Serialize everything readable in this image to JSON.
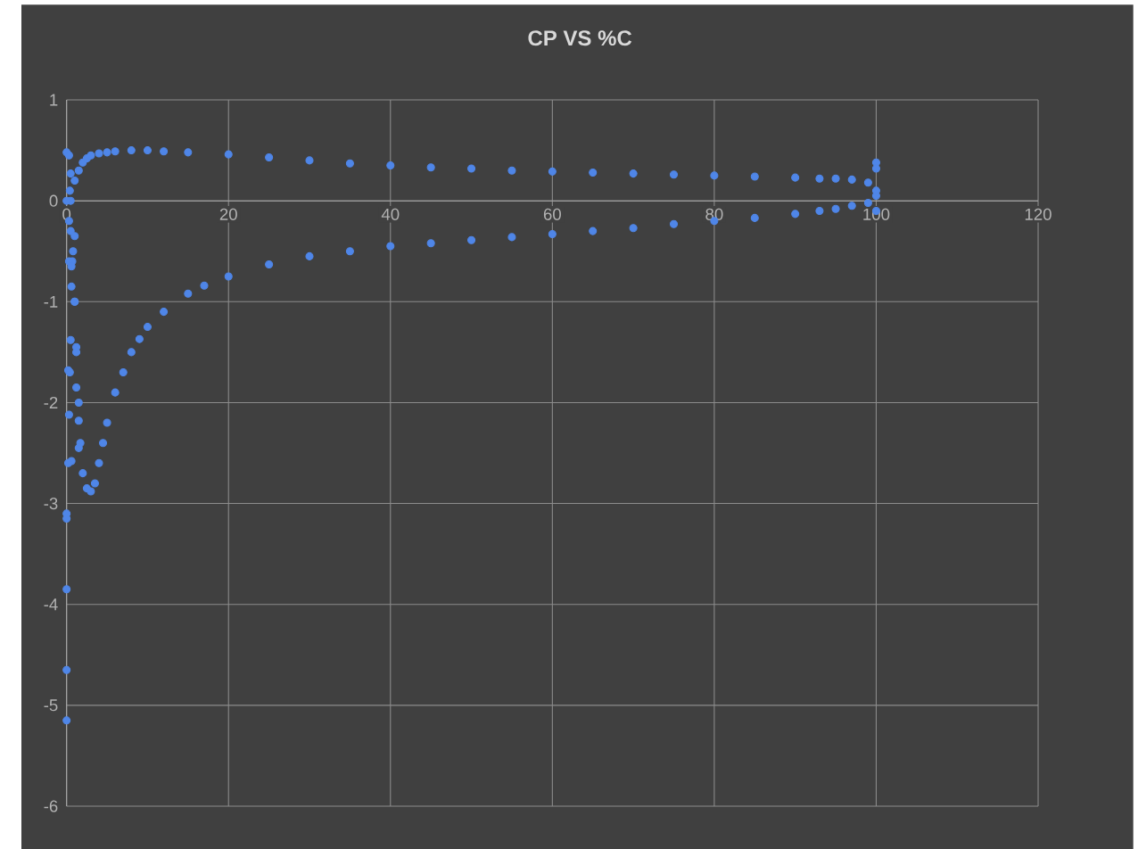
{
  "chart_data": {
    "type": "scatter",
    "title": "CP VS %C",
    "xlim": [
      0,
      120
    ],
    "ylim": [
      -6,
      1
    ],
    "xticks": [
      0,
      20,
      40,
      60,
      80,
      100,
      120
    ],
    "yticks": [
      -6,
      -5,
      -4,
      -3,
      -2,
      -1,
      0,
      1
    ],
    "grid": true,
    "marker": "circle",
    "series": [
      {
        "color": "#4f86e8",
        "x": [
          0.5,
          1,
          1.5,
          2,
          2.5,
          3,
          4,
          5,
          6,
          8,
          10,
          12,
          15,
          20,
          25,
          30,
          35,
          40,
          45,
          50,
          55,
          60,
          65,
          70,
          75,
          80,
          85,
          90,
          93,
          95,
          97,
          99,
          100,
          100,
          99,
          97,
          95,
          93,
          90,
          85,
          80,
          75,
          70,
          65,
          60,
          55,
          50,
          45,
          40,
          35,
          30,
          25,
          20,
          17,
          15,
          12,
          10,
          9,
          8,
          7,
          6,
          5,
          4.5,
          4,
          3.5,
          3,
          2.5,
          2,
          1.7,
          1.5,
          1.2,
          1,
          0.7,
          0.5,
          0,
          0.3,
          0.5,
          0.4,
          0,
          0.3,
          1,
          0.8,
          0.3,
          0.6,
          0.6,
          1,
          0.5,
          1.2,
          0.2,
          0.4,
          1.2,
          0.3,
          1.5,
          1.5,
          0.6,
          0.2,
          0,
          0,
          0,
          0,
          0,
          100,
          100,
          100
        ],
        "values": [
          0,
          0.2,
          0.3,
          0.38,
          0.42,
          0.45,
          0.47,
          0.48,
          0.49,
          0.5,
          0.5,
          0.49,
          0.48,
          0.46,
          0.43,
          0.4,
          0.37,
          0.35,
          0.33,
          0.32,
          0.3,
          0.29,
          0.28,
          0.27,
          0.26,
          0.25,
          0.24,
          0.23,
          0.22,
          0.22,
          0.21,
          0.18,
          0.1,
          0.05,
          -0.02,
          -0.05,
          -0.08,
          -0.1,
          -0.13,
          -0.17,
          -0.2,
          -0.23,
          -0.27,
          -0.3,
          -0.33,
          -0.36,
          -0.39,
          -0.42,
          -0.45,
          -0.5,
          -0.55,
          -0.63,
          -0.75,
          -0.84,
          -0.92,
          -1.1,
          -1.25,
          -1.37,
          -1.5,
          -1.7,
          -1.9,
          -2.2,
          -2.4,
          -2.6,
          -2.8,
          -2.88,
          -2.85,
          -2.7,
          -2.4,
          -2.0,
          -1.5,
          -1.0,
          -0.6,
          -0.3,
          0.48,
          0.45,
          0.27,
          0.1,
          0,
          -0.2,
          -0.35,
          -0.5,
          -0.6,
          -0.65,
          -0.85,
          -1,
          -1.38,
          -1.45,
          -1.68,
          -1.7,
          -1.85,
          -2.12,
          -2.18,
          -2.45,
          -2.58,
          -2.6,
          -3.1,
          -3.15,
          -3.85,
          -4.65,
          -5.15,
          0.38,
          0.32,
          -0.1
        ]
      }
    ]
  }
}
